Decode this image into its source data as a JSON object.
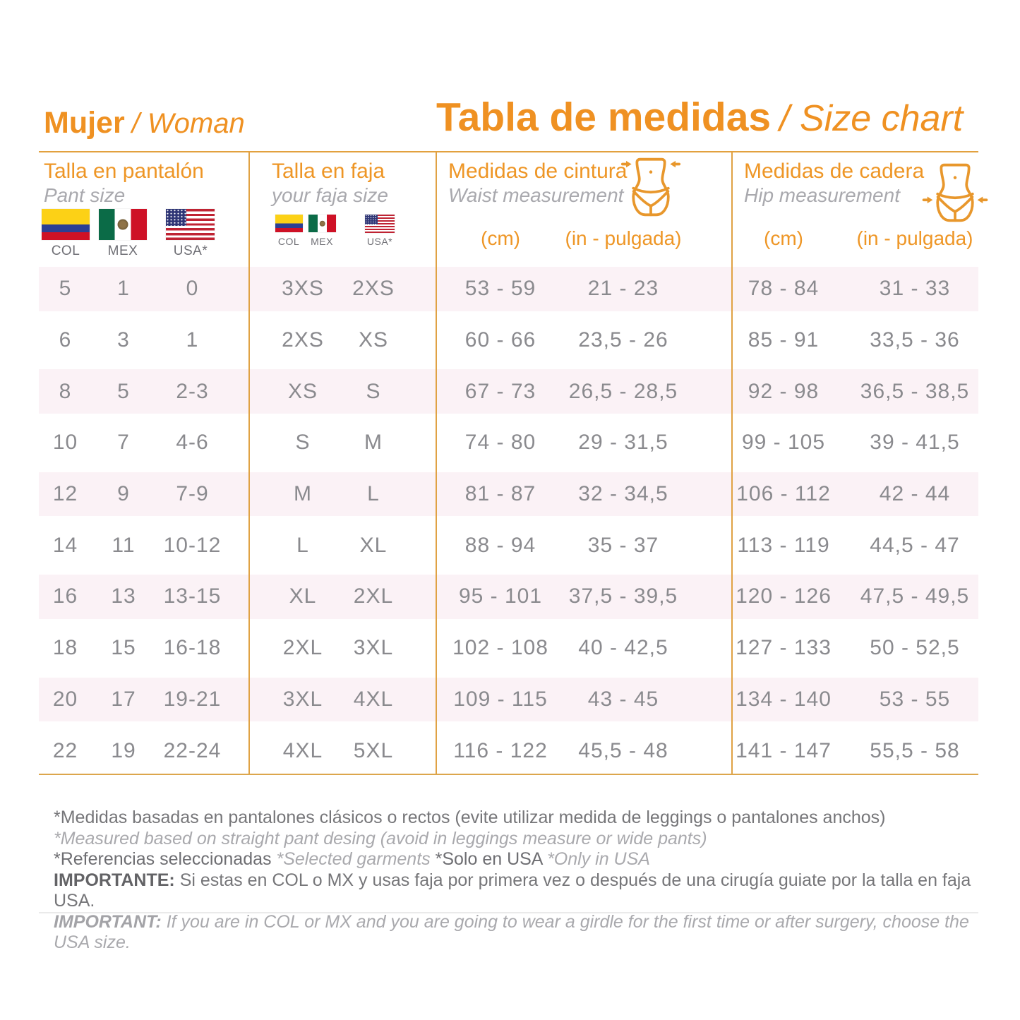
{
  "header": {
    "left_title": "Mujer",
    "left_subtitle": "/ Woman",
    "main_title": "Tabla de medidas",
    "main_subtitle": "/ Size chart"
  },
  "columns": {
    "pant": {
      "title_es": "Talla en pantalón",
      "title_en": "Pant size",
      "flags": [
        "COL",
        "MEX",
        "USA*"
      ]
    },
    "faja": {
      "title_es": "Talla en faja",
      "title_en": "your faja size",
      "flags": [
        "COL",
        "MEX",
        "USA*"
      ]
    },
    "waist": {
      "title_es": "Medidas de cintura",
      "title_en": "Waist measurement",
      "unit_cm": "(cm)",
      "unit_in": "(in - pulgada)"
    },
    "hip": {
      "title_es": "Medidas de cadera",
      "title_en": "Hip measurement",
      "unit_cm": "(cm)",
      "unit_in": "(in - pulgada)"
    }
  },
  "rows": [
    [
      "5",
      "1",
      "0",
      "3XS",
      "2XS",
      "53 - 59",
      "21 - 23",
      "78 - 84",
      "31 - 33"
    ],
    [
      "6",
      "3",
      "1",
      "2XS",
      "XS",
      "60 - 66",
      "23,5 - 26",
      "85 - 91",
      "33,5 - 36"
    ],
    [
      "8",
      "5",
      "2-3",
      "XS",
      "S",
      "67 - 73",
      "26,5 - 28,5",
      "92 - 98",
      "36,5 - 38,5"
    ],
    [
      "10",
      "7",
      "4-6",
      "S",
      "M",
      "74 - 80",
      "29 - 31,5",
      "99 - 105",
      "39 - 41,5"
    ],
    [
      "12",
      "9",
      "7-9",
      "M",
      "L",
      "81 - 87",
      "32 - 34,5",
      "106 - 112",
      "42 - 44"
    ],
    [
      "14",
      "11",
      "10-12",
      "L",
      "XL",
      "88 - 94",
      "35 - 37",
      "113 - 119",
      "44,5 - 47"
    ],
    [
      "16",
      "13",
      "13-15",
      "XL",
      "2XL",
      "95 - 101",
      "37,5 - 39,5",
      "120 - 126",
      "47,5 - 49,5"
    ],
    [
      "18",
      "15",
      "16-18",
      "2XL",
      "3XL",
      "102 - 108",
      "40 - 42,5",
      "127 - 133",
      "50 - 52,5"
    ],
    [
      "20",
      "17",
      "19-21",
      "3XL",
      "4XL",
      "109 - 115",
      "43 - 45",
      "134 - 140",
      "53 - 55"
    ],
    [
      "22",
      "19",
      "22-24",
      "4XL",
      "5XL",
      "116 - 122",
      "45,5 - 48",
      "141 - 147",
      "55,5 - 58"
    ]
  ],
  "notes": {
    "line1": "*Medidas basadas en pantalones clásicos o rectos (evite utilizar medida de leggings o pantalones anchos)",
    "line2": "*Measured based on straight pant desing (avoid in leggings measure or wide pants)",
    "line3_a": "*Referencias seleccionadas",
    "line3_b": "*Selected garments",
    "line3_c": "*Solo en USA",
    "line3_d": "*Only in USA",
    "line4_label": "IMPORTANTE:",
    "line4_text": "Si estas en COL o MX y usas faja por primera vez o después de una cirugía guiate por la talla en faja USA.",
    "line5_label": "IMPORTANT:",
    "line5_text": "If you are in COL or MX and you are going to wear a girdle for the first time or after surgery, choose the USA size."
  },
  "colors": {
    "accent_orange": "#EF9122",
    "grid_orange": "#E0A244",
    "row_pink": "#FBF2F6",
    "data_gray": "#8A8A8E"
  }
}
